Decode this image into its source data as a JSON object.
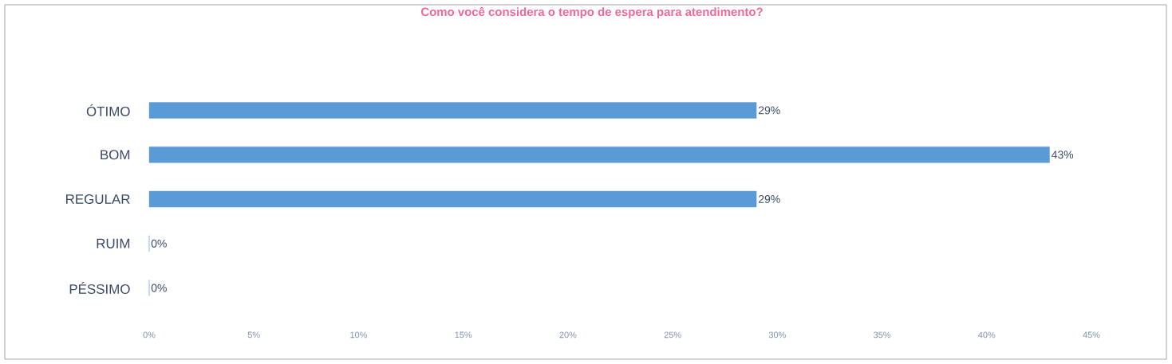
{
  "chart_data": {
    "type": "bar",
    "orientation": "horizontal",
    "title": "Como você considera o tempo de espera para atendimento?",
    "categories": [
      "ÓTIMO",
      "BOM",
      "REGULAR",
      "RUIM",
      "PÉSSIMO"
    ],
    "values": [
      29,
      43,
      29,
      0,
      0
    ],
    "value_labels": [
      "29%",
      "43%",
      "29%",
      "0%",
      "0%"
    ],
    "color": "#5b9bd5",
    "xlim": [
      0,
      45
    ],
    "xticks": [
      {
        "value": 0,
        "label": "0%"
      },
      {
        "value": 5,
        "label": "5%"
      },
      {
        "value": 10,
        "label": "10%"
      },
      {
        "value": 15,
        "label": "15%"
      },
      {
        "value": 20,
        "label": "20%"
      },
      {
        "value": 25,
        "label": "25%"
      },
      {
        "value": 30,
        "label": "30%"
      },
      {
        "value": 35,
        "label": "35%"
      },
      {
        "value": 40,
        "label": "40%"
      },
      {
        "value": 45,
        "label": "45%"
      }
    ],
    "grid": false
  }
}
